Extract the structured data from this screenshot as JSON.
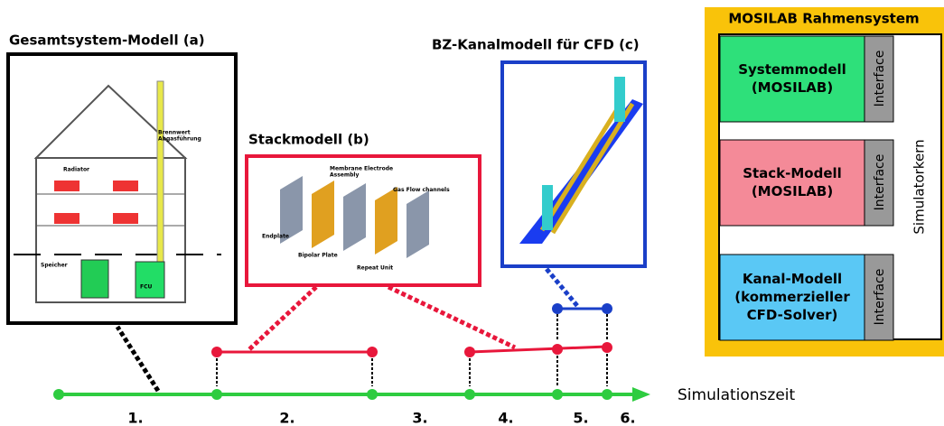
{
  "panels": {
    "system": {
      "title": "Gesamtsystem-Modell (a)",
      "labels": {
        "flue": "Brennwert Abgasführung",
        "radiator": "Radiator",
        "storage": "Speicher",
        "fcu": "FCU"
      }
    },
    "stack": {
      "title": "Stackmodell (b)",
      "labels": {
        "mea": "Membrane Electrode Assembly",
        "gas": "Gas Flow channels",
        "endplate": "Endplate",
        "bipolar": "Bipolar Plate",
        "repeat": "Repeat Unit"
      }
    },
    "channel": {
      "title": "BZ-Kanalmodell für CFD (c)"
    }
  },
  "framework": {
    "title": "MOSILAB Rahmensystem",
    "core": "Simulatorkern",
    "modules": [
      {
        "name": "Systemmodell (MOSILAB)",
        "interface": "Interface"
      },
      {
        "name": "Stack-Modell (MOSILAB)",
        "interface": "Interface"
      },
      {
        "name": "Kanal-Modell (kommerzieller CFD-Solver)",
        "interface": "Interface"
      }
    ]
  },
  "timeline": {
    "label": "Simulationszeit",
    "steps": [
      "1.",
      "2.",
      "3.",
      "4.",
      "5.",
      "6."
    ]
  }
}
